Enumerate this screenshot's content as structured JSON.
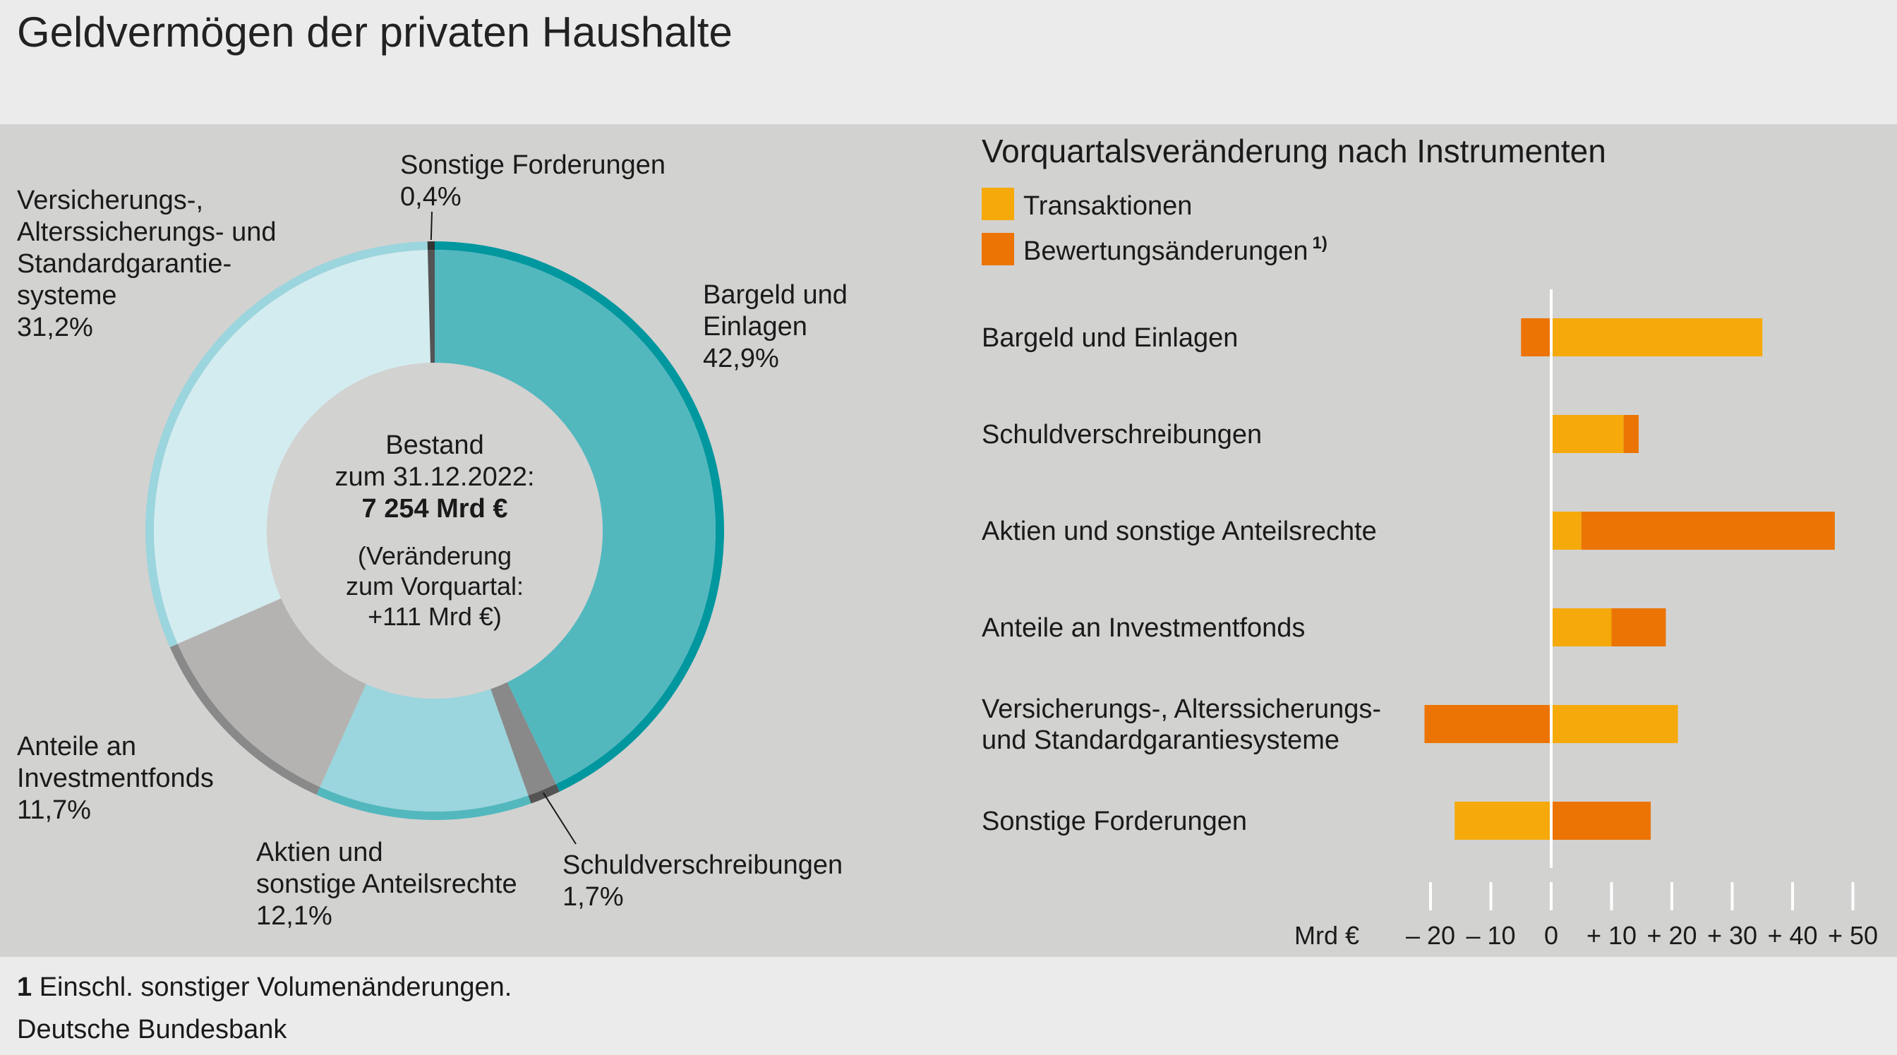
{
  "title": "Geldvermögen der privaten Haushalte",
  "footnote_num": "1",
  "footnote": "Einschl. sonstiger Volumenänderungen.",
  "source": "Deutsche Bundesbank",
  "colors": {
    "transaktionen": "#f5a90b",
    "bewertung": "#ec7404",
    "bargeld": "#52b8be",
    "bargeld_rim": "#00979f",
    "schuld": "#898989",
    "schuld_rim": "#545454",
    "aktien": "#9bd5dd",
    "aktien_rim": "#52b8be",
    "fonds": "#b4b3b2",
    "fonds_rim": "#898989",
    "versicherung": "#d3ecf0",
    "versicherung_rim": "#9bd5dd",
    "sonstige": "#545454",
    "sonstige_rim": "#333333",
    "center": "#d2d2d1"
  },
  "chart_data": [
    {
      "type": "pie",
      "variant": "donut",
      "center_text": {
        "line1": "Bestand",
        "line2": "zum 31.12.2022:",
        "line3": "7 254 Mrd €",
        "line4": "(Veränderung",
        "line5": "zum Vorquartal:",
        "line6": "+111 Mrd €)"
      },
      "slices": [
        {
          "label_lines": [
            "Bargeld und",
            "Einlagen"
          ],
          "pct_text": "42,9%",
          "value": 42.9
        },
        {
          "label_lines": [
            "Schuldverschreibungen"
          ],
          "pct_text": "1,7%",
          "value": 1.7
        },
        {
          "label_lines": [
            "Aktien und",
            "sonstige Anteilsrechte"
          ],
          "pct_text": "12,1%",
          "value": 12.1
        },
        {
          "label_lines": [
            "Anteile an",
            "Investmentfonds"
          ],
          "pct_text": "11,7%",
          "value": 11.7
        },
        {
          "label_lines": [
            "Versicherungs-,",
            "Alterssicherungs- und",
            "Standardgarantie-",
            "systeme"
          ],
          "pct_text": "31,2%",
          "value": 31.2
        },
        {
          "label_lines": [
            "Sonstige Forderungen"
          ],
          "pct_text": "0,4%",
          "value": 0.4
        }
      ]
    },
    {
      "type": "bar",
      "orientation": "horizontal",
      "stacked": true,
      "title": "Vorquartalsveränderung nach Instrumenten",
      "legend": {
        "transaktionen": "Transaktionen",
        "bewertung": "Bewertungsänderungen",
        "bewertung_sup": "1)"
      },
      "unit_label": "Mrd €",
      "xlim": [
        -22,
        52
      ],
      "ticks": [
        -20,
        -10,
        0,
        10,
        20,
        30,
        40,
        50
      ],
      "tick_labels": [
        "– 20",
        "– 10",
        "0",
        "+ 10",
        "+ 20",
        "+ 30",
        "+ 40",
        "+ 50"
      ],
      "categories": [
        {
          "label_lines": [
            "Bargeld und Einlagen"
          ],
          "transaktionen": 35,
          "bewertung": -5
        },
        {
          "label_lines": [
            "Schuldverschreibungen"
          ],
          "transaktionen": 12,
          "bewertung": 2.5
        },
        {
          "label_lines": [
            "Aktien und sonstige Anteilsrechte"
          ],
          "transaktionen": 5,
          "bewertung": 42
        },
        {
          "label_lines": [
            "Anteile an Investmentfonds"
          ],
          "transaktionen": 10,
          "bewertung": 9
        },
        {
          "label_lines": [
            "Versicherungs-, Alterssicherungs-",
            "und Standardgarantiesysteme"
          ],
          "transaktionen": 21,
          "bewertung": -21
        },
        {
          "label_lines": [
            "Sonstige Forderungen"
          ],
          "transaktionen": -16,
          "bewertung": 16.5
        }
      ]
    }
  ]
}
